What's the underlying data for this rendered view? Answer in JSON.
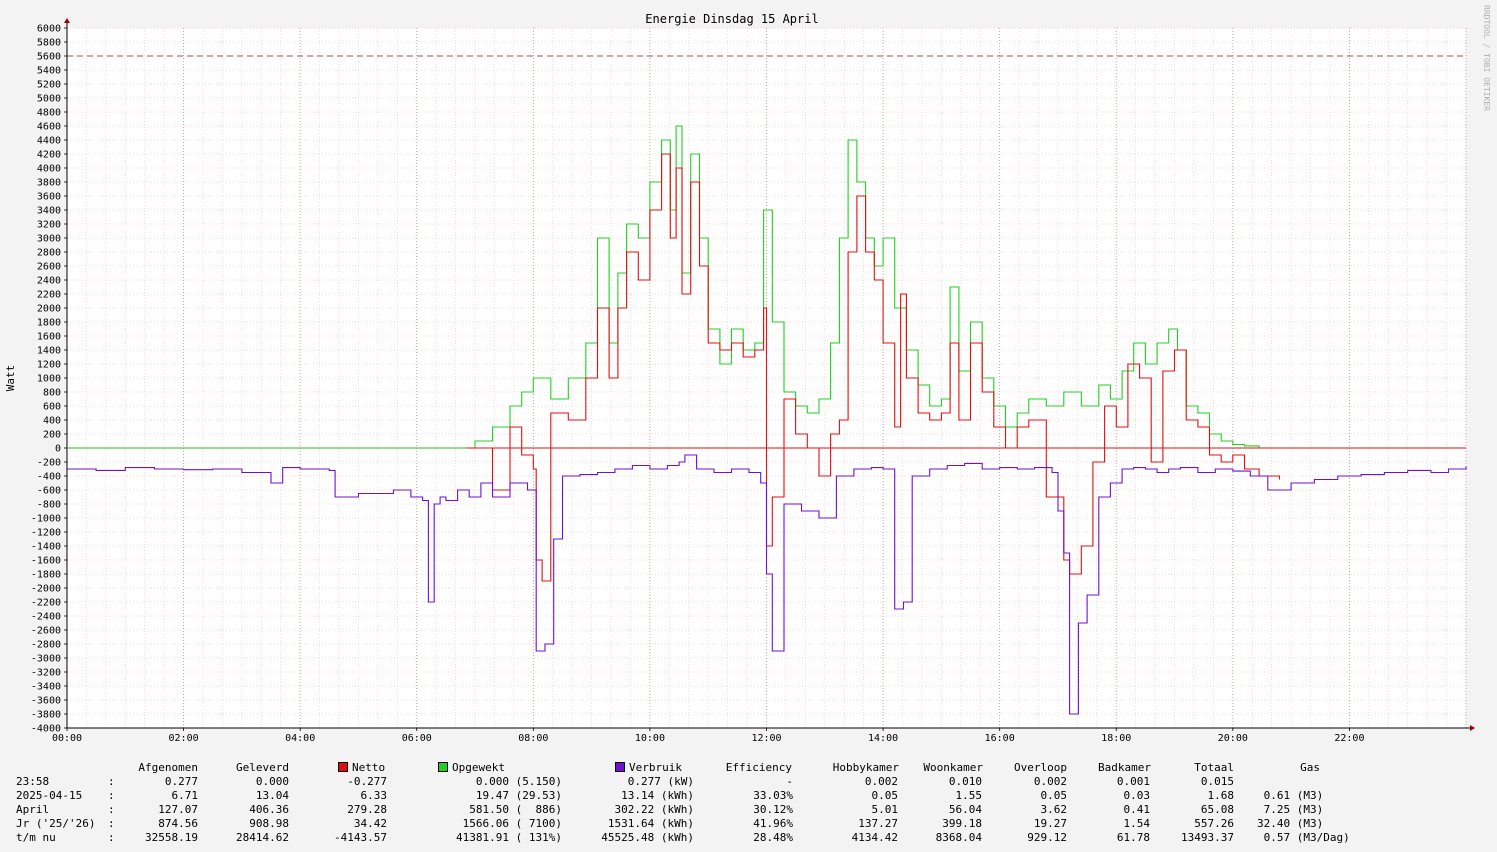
{
  "chart_data": {
    "type": "line",
    "title": "Energie Dinsdag   15 April",
    "ylabel": "Watt",
    "watermark": "RRDTOOL / TOBI OETIKER",
    "ylim": [
      -4000,
      6000
    ],
    "xlim": [
      0,
      24
    ],
    "grid": true,
    "y_ticks": [
      6000,
      5800,
      5600,
      5400,
      5200,
      5000,
      4800,
      4600,
      4400,
      4200,
      4000,
      3800,
      3600,
      3400,
      3200,
      3000,
      2800,
      2600,
      2400,
      2200,
      2000,
      1800,
      1600,
      1400,
      1200,
      1000,
      800,
      600,
      400,
      200,
      0,
      -200,
      -400,
      -600,
      -800,
      -1000,
      -1200,
      -1400,
      -1600,
      -1800,
      -2000,
      -2200,
      -2400,
      -2600,
      -2800,
      -3000,
      -3200,
      -3400,
      -3600,
      -3800,
      -4000
    ],
    "x_ticks": [
      "00:00",
      "02:00",
      "04:00",
      "06:00",
      "08:00",
      "10:00",
      "12:00",
      "14:00",
      "16:00",
      "18:00",
      "20:00",
      "22:00"
    ],
    "reference_line": {
      "y": 5600,
      "color": "#a05050"
    },
    "colors": {
      "netto": "#e01010",
      "opgewekt": "#20d020",
      "verbruik": "#7010d0",
      "zero_line": "#20c020"
    },
    "series": [
      {
        "name": "Opgewekt",
        "color": "#20d020",
        "x": [
          6.85,
          7.0,
          7.3,
          7.6,
          7.8,
          8.0,
          8.3,
          8.6,
          8.9,
          9.1,
          9.3,
          9.45,
          9.6,
          9.8,
          10.0,
          10.2,
          10.35,
          10.45,
          10.55,
          10.7,
          10.85,
          11.0,
          11.2,
          11.4,
          11.6,
          11.8,
          11.95,
          12.1,
          12.3,
          12.5,
          12.7,
          12.9,
          13.1,
          13.25,
          13.4,
          13.55,
          13.7,
          13.85,
          14.0,
          14.2,
          14.4,
          14.6,
          14.8,
          15.0,
          15.15,
          15.3,
          15.5,
          15.7,
          15.9,
          16.1,
          16.3,
          16.5,
          16.8,
          17.1,
          17.4,
          17.7,
          17.9,
          18.1,
          18.3,
          18.5,
          18.7,
          18.9,
          19.05,
          19.2,
          19.4,
          19.6,
          19.8,
          20.0,
          20.2,
          20.45
        ],
        "y": [
          0,
          100,
          300,
          600,
          800,
          1000,
          700,
          1000,
          1500,
          3000,
          1500,
          2500,
          3200,
          3000,
          3800,
          4400,
          3400,
          4600,
          2500,
          4200,
          3000,
          1700,
          1200,
          1700,
          1400,
          1500,
          3400,
          1800,
          800,
          600,
          500,
          700,
          1500,
          3000,
          4400,
          3800,
          3000,
          2600,
          3000,
          2000,
          1400,
          900,
          600,
          700,
          2300,
          1100,
          1800,
          1000,
          600,
          300,
          500,
          700,
          600,
          800,
          600,
          900,
          700,
          1100,
          1500,
          1200,
          1500,
          1700,
          1400,
          600,
          500,
          200,
          100,
          50,
          30,
          0
        ]
      },
      {
        "name": "Netto",
        "color": "#e01010",
        "x": [
          6.85,
          7.3,
          7.6,
          7.8,
          8.0,
          8.05,
          8.15,
          8.3,
          8.6,
          8.9,
          9.1,
          9.3,
          9.45,
          9.6,
          9.8,
          10.0,
          10.2,
          10.35,
          10.45,
          10.55,
          10.7,
          10.85,
          11.0,
          11.2,
          11.4,
          11.6,
          11.8,
          11.95,
          12.0,
          12.1,
          12.3,
          12.5,
          12.7,
          12.9,
          13.1,
          13.25,
          13.4,
          13.55,
          13.7,
          13.85,
          14.0,
          14.2,
          14.3,
          14.4,
          14.6,
          14.8,
          15.0,
          15.15,
          15.3,
          15.5,
          15.7,
          15.9,
          16.1,
          16.3,
          16.5,
          16.8,
          17.1,
          17.2,
          17.4,
          17.6,
          17.8,
          18.0,
          18.2,
          18.4,
          18.6,
          18.8,
          19.0,
          19.2,
          19.4,
          19.6,
          19.8,
          20.0,
          20.2,
          20.45,
          20.8
        ],
        "y": [
          0,
          -600,
          300,
          -100,
          -300,
          -1600,
          -1900,
          500,
          400,
          1000,
          2000,
          1000,
          2000,
          2800,
          2400,
          3400,
          4200,
          3000,
          4000,
          2200,
          3800,
          2600,
          1500,
          1400,
          1500,
          1300,
          1400,
          2000,
          -1400,
          -700,
          700,
          200,
          0,
          -400,
          200,
          400,
          2800,
          3600,
          2800,
          2400,
          1500,
          300,
          2200,
          1000,
          500,
          400,
          500,
          1500,
          400,
          1500,
          800,
          300,
          0,
          300,
          400,
          -700,
          -1600,
          -1800,
          -1400,
          -200,
          600,
          300,
          1200,
          1000,
          -200,
          1100,
          1400,
          400,
          300,
          -100,
          -200,
          -100,
          -300,
          -400,
          -450
        ]
      },
      {
        "name": "Verbruik",
        "color": "#7010d0",
        "x": [
          0,
          0.5,
          1.0,
          1.5,
          2.0,
          2.5,
          3.0,
          3.5,
          3.7,
          4.0,
          4.5,
          4.6,
          5.0,
          5.3,
          5.6,
          5.9,
          6.1,
          6.2,
          6.3,
          6.4,
          6.5,
          6.7,
          6.9,
          7.1,
          7.3,
          7.6,
          7.9,
          8.05,
          8.2,
          8.35,
          8.5,
          8.8,
          9.1,
          9.4,
          9.7,
          10.0,
          10.3,
          10.5,
          10.6,
          10.8,
          11.1,
          11.4,
          11.7,
          11.9,
          12.0,
          12.1,
          12.3,
          12.6,
          12.9,
          13.2,
          13.5,
          13.8,
          14.0,
          14.2,
          14.35,
          14.5,
          14.8,
          15.1,
          15.4,
          15.7,
          16.0,
          16.3,
          16.6,
          16.9,
          17.0,
          17.1,
          17.2,
          17.35,
          17.5,
          17.7,
          17.9,
          18.1,
          18.3,
          18.5,
          18.7,
          18.9,
          19.1,
          19.4,
          19.7,
          20.0,
          20.3,
          20.6,
          21.0,
          21.4,
          21.8,
          22.2,
          22.6,
          23.0,
          23.4,
          23.7,
          24.0
        ],
        "y": [
          -300,
          -320,
          -280,
          -300,
          -310,
          -300,
          -350,
          -500,
          -280,
          -300,
          -320,
          -700,
          -650,
          -650,
          -600,
          -700,
          -750,
          -2200,
          -800,
          -700,
          -750,
          -600,
          -700,
          -500,
          -700,
          -500,
          -600,
          -2900,
          -2800,
          -1300,
          -400,
          -380,
          -350,
          -300,
          -250,
          -300,
          -250,
          -200,
          -100,
          -300,
          -350,
          -300,
          -350,
          -500,
          -1800,
          -2900,
          -800,
          -900,
          -1000,
          -400,
          -300,
          -280,
          -300,
          -2300,
          -2200,
          -400,
          -300,
          -250,
          -220,
          -300,
          -280,
          -300,
          -280,
          -350,
          -900,
          -1500,
          -3800,
          -2500,
          -2100,
          -700,
          -500,
          -300,
          -280,
          -300,
          -350,
          -300,
          -280,
          -350,
          -300,
          -330,
          -400,
          -600,
          -500,
          -450,
          -400,
          -380,
          -350,
          -320,
          -350,
          -300,
          -260
        ]
      }
    ]
  },
  "table": {
    "headers": {
      "afgenomen": "Afgenomen",
      "geleverd": "Geleverd",
      "netto": "Netto",
      "opgewekt": "Opgewekt",
      "verbruik": "Verbruik",
      "efficiency": "Efficiency",
      "hobbykamer": "Hobbykamer",
      "woonkamer": "Woonkamer",
      "overloop": "Overloop",
      "badkamer": "Badkamer",
      "totaal": "Totaal",
      "gas": "Gas"
    },
    "rows": [
      {
        "label": "23:58",
        "sep": ":",
        "afgenomen": "0.277",
        "geleverd": "0.000",
        "netto": "-0.277",
        "opgewekt": "0.000 (5.150)",
        "verbruik": "0.277 (kW)",
        "efficiency": "-",
        "hobbykamer": "0.002",
        "woonkamer": "0.010",
        "overloop": "0.002",
        "badkamer": "0.001",
        "totaal": "0.015",
        "gas": ""
      },
      {
        "label": "2025-04-15",
        "sep": ":",
        "afgenomen": "6.71",
        "geleverd": "13.04",
        "netto": "6.33",
        "opgewekt": "19.47 (29.53)",
        "verbruik": "13.14 (kWh)",
        "efficiency": "33.03%",
        "hobbykamer": "0.05",
        "woonkamer": "1.55",
        "overloop": "0.05",
        "badkamer": "0.03",
        "totaal": "1.68",
        "gas": "0.61 (M3)"
      },
      {
        "label": "April",
        "sep": ":",
        "afgenomen": "127.07",
        "geleverd": "406.36",
        "netto": "279.28",
        "opgewekt": "581.50 (  886)",
        "verbruik": "302.22 (kWh)",
        "efficiency": "30.12%",
        "hobbykamer": "5.01",
        "woonkamer": "56.04",
        "overloop": "3.62",
        "badkamer": "0.41",
        "totaal": "65.08",
        "gas": "7.25 (M3)"
      },
      {
        "label": "Jr ('25/'26)",
        "sep": ":",
        "afgenomen": "874.56",
        "geleverd": "908.98",
        "netto": "34.42",
        "opgewekt": "1566.06 ( 7100)",
        "verbruik": "1531.64 (kWh)",
        "efficiency": "41.96%",
        "hobbykamer": "137.27",
        "woonkamer": "399.18",
        "overloop": "19.27",
        "badkamer": "1.54",
        "totaal": "557.26",
        "gas": "32.40 (M3)"
      },
      {
        "label": "t/m nu",
        "sep": ":",
        "afgenomen": "32558.19",
        "geleverd": "28414.62",
        "netto": "-4143.57",
        "opgewekt": "41381.91 ( 131%)",
        "verbruik": "45525.48 (kWh)",
        "efficiency": "28.48%",
        "hobbykamer": "4134.42",
        "woonkamer": "8368.04",
        "overloop": "929.12",
        "badkamer": "61.78",
        "totaal": "13493.37",
        "gas": "0.57 (M3/Dag)"
      }
    ]
  }
}
